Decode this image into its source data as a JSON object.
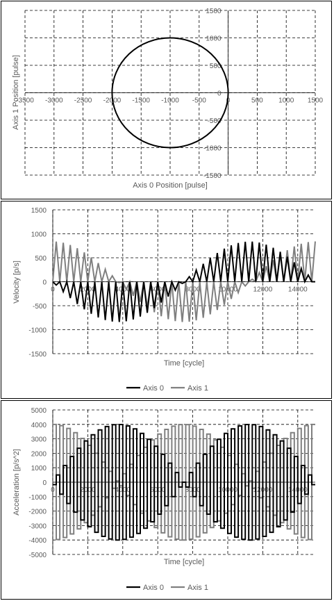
{
  "chart_data": [
    {
      "type": "line",
      "id": "position",
      "xlabel": "Axis 0 Position [pulse]",
      "ylabel": "Axis 1 Position [pulse]",
      "xlim": [
        -3500,
        1500
      ],
      "ylim": [
        -1500,
        1500
      ],
      "xticks": [
        -3500,
        -3000,
        -2500,
        -2000,
        -1500,
        -1000,
        -500,
        0,
        500,
        1000,
        1500
      ],
      "yticks": [
        -1500,
        -1000,
        -500,
        0,
        500,
        1000,
        1500
      ],
      "grid": true,
      "series": [
        {
          "shape": "circle",
          "center": [
            -1000,
            0
          ],
          "radius": 1000,
          "color": "#000000"
        }
      ]
    },
    {
      "type": "line",
      "id": "velocity",
      "xlabel": "Time [cycle]",
      "ylabel": "Velocity [p/s]",
      "xlim": [
        0,
        15000
      ],
      "ylim": [
        -1500,
        1500
      ],
      "xticks": [
        0,
        2000,
        4000,
        6000,
        8000,
        10000,
        12000,
        14000
      ],
      "yticks": [
        -1500,
        -1000,
        -500,
        0,
        500,
        1000,
        1500
      ],
      "grid": true,
      "legend": "bottom",
      "series": [
        {
          "name": "Axis 0",
          "color": "#000000",
          "peak": 840,
          "phase": "negative-then-positive",
          "oscillation_period": 400,
          "duration": 15000
        },
        {
          "name": "Axis 1",
          "color": "#7f7f7f",
          "peak": 840,
          "phase": "cosine",
          "oscillation_period": 400,
          "duration": 15000
        }
      ]
    },
    {
      "type": "line",
      "id": "acceleration",
      "xlabel": "Time [cycle]",
      "ylabel": "Acceleration [p/s^2]",
      "xlim": [
        0,
        15000
      ],
      "ylim": [
        -5000,
        5000
      ],
      "xticks": [
        0,
        2000,
        4000,
        6000,
        8000,
        10000,
        12000,
        14000
      ],
      "yticks": [
        -5000,
        -4000,
        -3000,
        -2000,
        -1000,
        0,
        1000,
        2000,
        3000,
        4000,
        5000
      ],
      "grid": true,
      "legend": "bottom",
      "series": [
        {
          "name": "Axis 0",
          "color": "#000000",
          "peak": 4000,
          "waveform": "square",
          "oscillation_period": 400,
          "duration": 15000
        },
        {
          "name": "Axis 1",
          "color": "#7f7f7f",
          "peak": 4000,
          "waveform": "square",
          "oscillation_period": 400,
          "duration": 15000
        }
      ]
    }
  ]
}
